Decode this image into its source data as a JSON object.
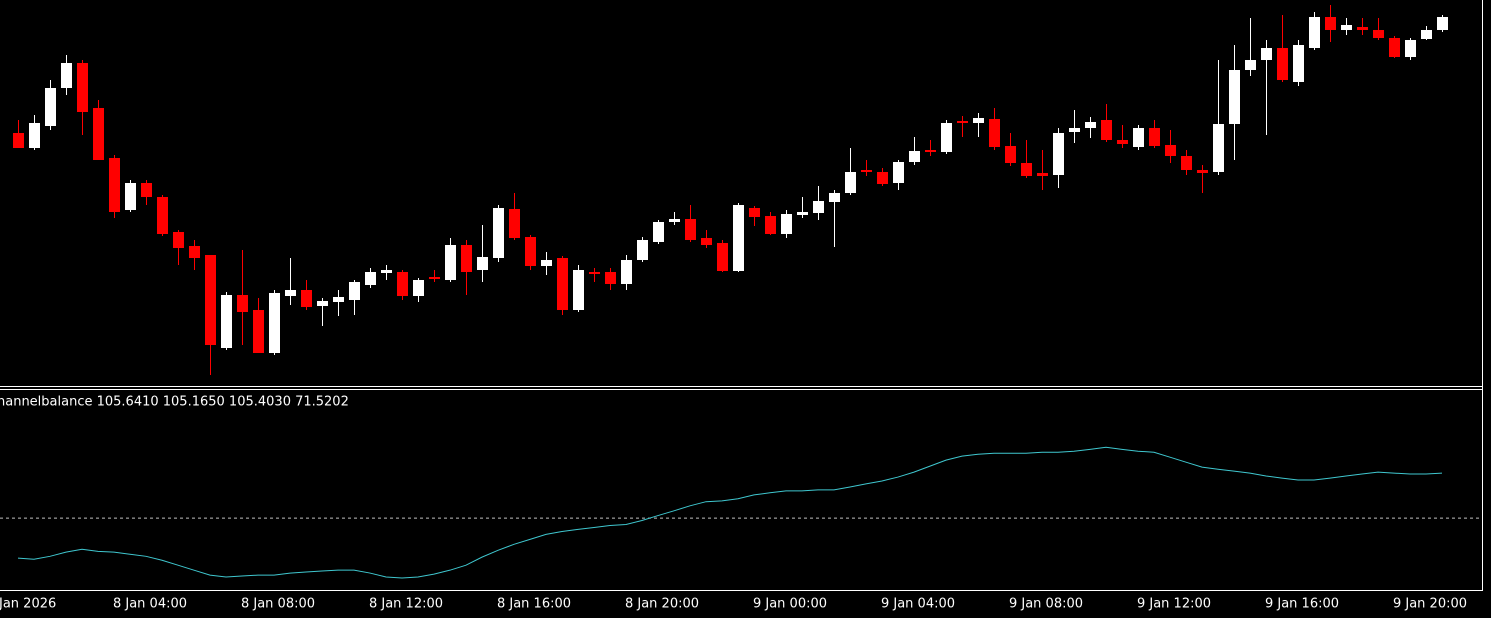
{
  "chart_data": [
    {
      "type": "candlestick",
      "categories": [
        "Jan 2026",
        null,
        null,
        null,
        null,
        null,
        null,
        null,
        "8 Jan 04:00",
        null,
        null,
        null,
        null,
        null,
        null,
        null,
        "8 Jan 08:00",
        null,
        null,
        null,
        null,
        null,
        null,
        null,
        "8 Jan 12:00",
        null,
        null,
        null,
        null,
        null,
        null,
        null,
        "8 Jan 16:00",
        null,
        null,
        null,
        null,
        null,
        null,
        null,
        "8 Jan 20:00",
        null,
        null,
        null,
        null,
        null,
        null,
        null,
        "9 Jan 00:00",
        null,
        null,
        null,
        null,
        null,
        null,
        null,
        "9 Jan 04:00",
        null,
        null,
        null,
        null,
        null,
        null,
        null,
        "9 Jan 08:00",
        null,
        null,
        null,
        null,
        null,
        null,
        null,
        "9 Jan 12:00",
        null,
        null,
        null,
        null,
        null,
        null,
        null,
        "9 Jan 16:00",
        null,
        null,
        null,
        null,
        null,
        null,
        null,
        "9 Jan 20:00",
        null
      ],
      "open": [
        105.335,
        105.26,
        105.37,
        105.56,
        105.685,
        105.46,
        105.21,
        104.95,
        105.085,
        105.015,
        104.84,
        104.77,
        104.725,
        104.26,
        104.525,
        104.45,
        104.235,
        104.52,
        104.55,
        104.47,
        104.49,
        104.5,
        104.575,
        104.635,
        104.64,
        104.52,
        104.615,
        104.6,
        104.775,
        104.65,
        104.71,
        104.955,
        104.815,
        104.67,
        104.71,
        104.45,
        104.64,
        104.64,
        104.58,
        104.7,
        104.79,
        104.89,
        104.905,
        104.81,
        104.785,
        104.645,
        104.96,
        104.92,
        104.83,
        104.925,
        104.935,
        104.99,
        105.035,
        105.15,
        105.14,
        105.085,
        105.19,
        105.25,
        105.24,
        105.395,
        105.385,
        105.405,
        105.27,
        105.185,
        105.135,
        105.125,
        105.34,
        105.36,
        105.4,
        105.3,
        105.265,
        105.36,
        105.275,
        105.22,
        105.15,
        105.14,
        105.38,
        105.65,
        105.7,
        105.76,
        105.59,
        105.76,
        105.915,
        105.85,
        105.865,
        105.85,
        105.81,
        105.715,
        105.805,
        105.85
      ],
      "high": [
        105.4,
        105.425,
        105.6,
        105.725,
        105.7,
        105.5,
        105.225,
        105.1,
        105.1,
        105.025,
        104.85,
        104.8,
        104.725,
        104.54,
        104.75,
        104.51,
        104.55,
        104.71,
        104.6,
        104.51,
        104.55,
        104.6,
        104.66,
        104.675,
        104.65,
        104.61,
        104.65,
        104.81,
        104.8,
        104.875,
        104.975,
        105.035,
        104.825,
        104.74,
        104.72,
        104.675,
        104.66,
        104.66,
        104.725,
        104.815,
        104.9,
        104.94,
        104.975,
        104.85,
        104.8,
        104.985,
        104.97,
        104.94,
        104.95,
        105.015,
        105.07,
        105.05,
        105.26,
        105.2,
        105.16,
        105.2,
        105.315,
        105.3,
        105.4,
        105.42,
        105.435,
        105.46,
        105.335,
        105.3,
        105.25,
        105.36,
        105.45,
        105.415,
        105.48,
        105.375,
        105.375,
        105.4,
        105.35,
        105.25,
        105.175,
        105.7,
        105.775,
        105.91,
        105.8,
        105.925,
        105.8,
        105.94,
        105.975,
        105.91,
        105.91,
        105.91,
        105.82,
        105.81,
        105.87,
        105.925
      ],
      "low": [
        105.26,
        105.25,
        105.35,
        105.525,
        105.325,
        105.2,
        104.91,
        104.94,
        104.975,
        104.82,
        104.675,
        104.65,
        104.125,
        104.25,
        104.275,
        104.235,
        104.225,
        104.475,
        104.45,
        104.37,
        104.42,
        104.425,
        104.56,
        104.6,
        104.5,
        104.49,
        104.59,
        104.59,
        104.525,
        104.59,
        104.69,
        104.8,
        104.65,
        104.625,
        104.425,
        104.44,
        104.59,
        104.55,
        104.55,
        104.69,
        104.78,
        104.875,
        104.79,
        104.76,
        104.64,
        104.64,
        104.87,
        104.825,
        104.81,
        104.91,
        104.9,
        104.765,
        105.025,
        105.12,
        105.07,
        105.05,
        105.175,
        105.22,
        105.23,
        105.315,
        105.315,
        105.25,
        105.17,
        105.11,
        105.05,
        105.06,
        105.285,
        105.31,
        105.29,
        105.26,
        105.25,
        105.26,
        105.185,
        105.125,
        105.035,
        105.125,
        105.2,
        105.62,
        105.325,
        105.59,
        105.57,
        105.75,
        105.79,
        105.825,
        105.825,
        105.8,
        105.71,
        105.7,
        105.8,
        105.84
      ],
      "close": [
        105.26,
        105.385,
        105.56,
        105.685,
        105.44,
        105.2,
        104.94,
        105.085,
        105.015,
        104.83,
        104.76,
        104.71,
        104.275,
        104.525,
        104.44,
        104.235,
        104.535,
        104.55,
        104.465,
        104.495,
        104.515,
        104.59,
        104.64,
        104.65,
        104.52,
        104.6,
        104.605,
        104.775,
        104.64,
        104.715,
        104.96,
        104.81,
        104.67,
        104.7,
        104.45,
        104.65,
        104.63,
        104.58,
        104.7,
        104.8,
        104.89,
        104.905,
        104.8,
        104.775,
        104.645,
        104.975,
        104.915,
        104.83,
        104.93,
        104.94,
        104.995,
        105.035,
        105.14,
        105.14,
        105.08,
        105.19,
        105.245,
        105.24,
        105.385,
        105.385,
        105.41,
        105.265,
        105.185,
        105.12,
        105.12,
        105.335,
        105.36,
        105.39,
        105.3,
        105.28,
        105.36,
        105.27,
        105.22,
        105.15,
        105.135,
        105.38,
        105.65,
        105.7,
        105.76,
        105.6,
        105.775,
        105.915,
        105.85,
        105.875,
        105.85,
        105.81,
        105.715,
        105.8,
        105.85,
        105.915
      ],
      "up_color": "#ffffff",
      "down_color": "#ff0000",
      "ylim": [
        104.075,
        106
      ]
    },
    {
      "type": "line",
      "title": "hannelbalance 105.6410 105.1650 105.4030 71.5202",
      "color": "#3fc7cf",
      "values": [
        30.4,
        29.9,
        31.3,
        33.3,
        34.7,
        33.7,
        33.3,
        32.3,
        31.3,
        29.4,
        27.0,
        24.6,
        22.2,
        21.3,
        21.8,
        22.2,
        22.2,
        23.2,
        23.7,
        24.2,
        24.6,
        24.6,
        23.2,
        21.3,
        20.8,
        21.3,
        22.7,
        24.6,
        27.0,
        30.9,
        34.2,
        37.1,
        39.5,
        41.9,
        43.3,
        44.3,
        45.2,
        46.2,
        46.7,
        48.6,
        51.0,
        53.3,
        55.7,
        57.7,
        58.1,
        59.1,
        61.0,
        62.0,
        62.9,
        62.9,
        63.4,
        63.4,
        64.8,
        66.3,
        67.7,
        69.6,
        72.0,
        74.9,
        77.8,
        79.7,
        80.6,
        81.1,
        81.1,
        81.1,
        81.6,
        81.6,
        82.1,
        83.0,
        84.0,
        83.0,
        82.1,
        81.6,
        79.2,
        76.8,
        74.4,
        73.4,
        72.5,
        71.5,
        70.1,
        69.1,
        68.2,
        68.2,
        69.1,
        70.1,
        71.1,
        72.0,
        71.5,
        71.1,
        71.1,
        71.5
      ],
      "ylim": [
        15.5,
        111.2
      ],
      "levels": [
        50
      ]
    }
  ]
}
